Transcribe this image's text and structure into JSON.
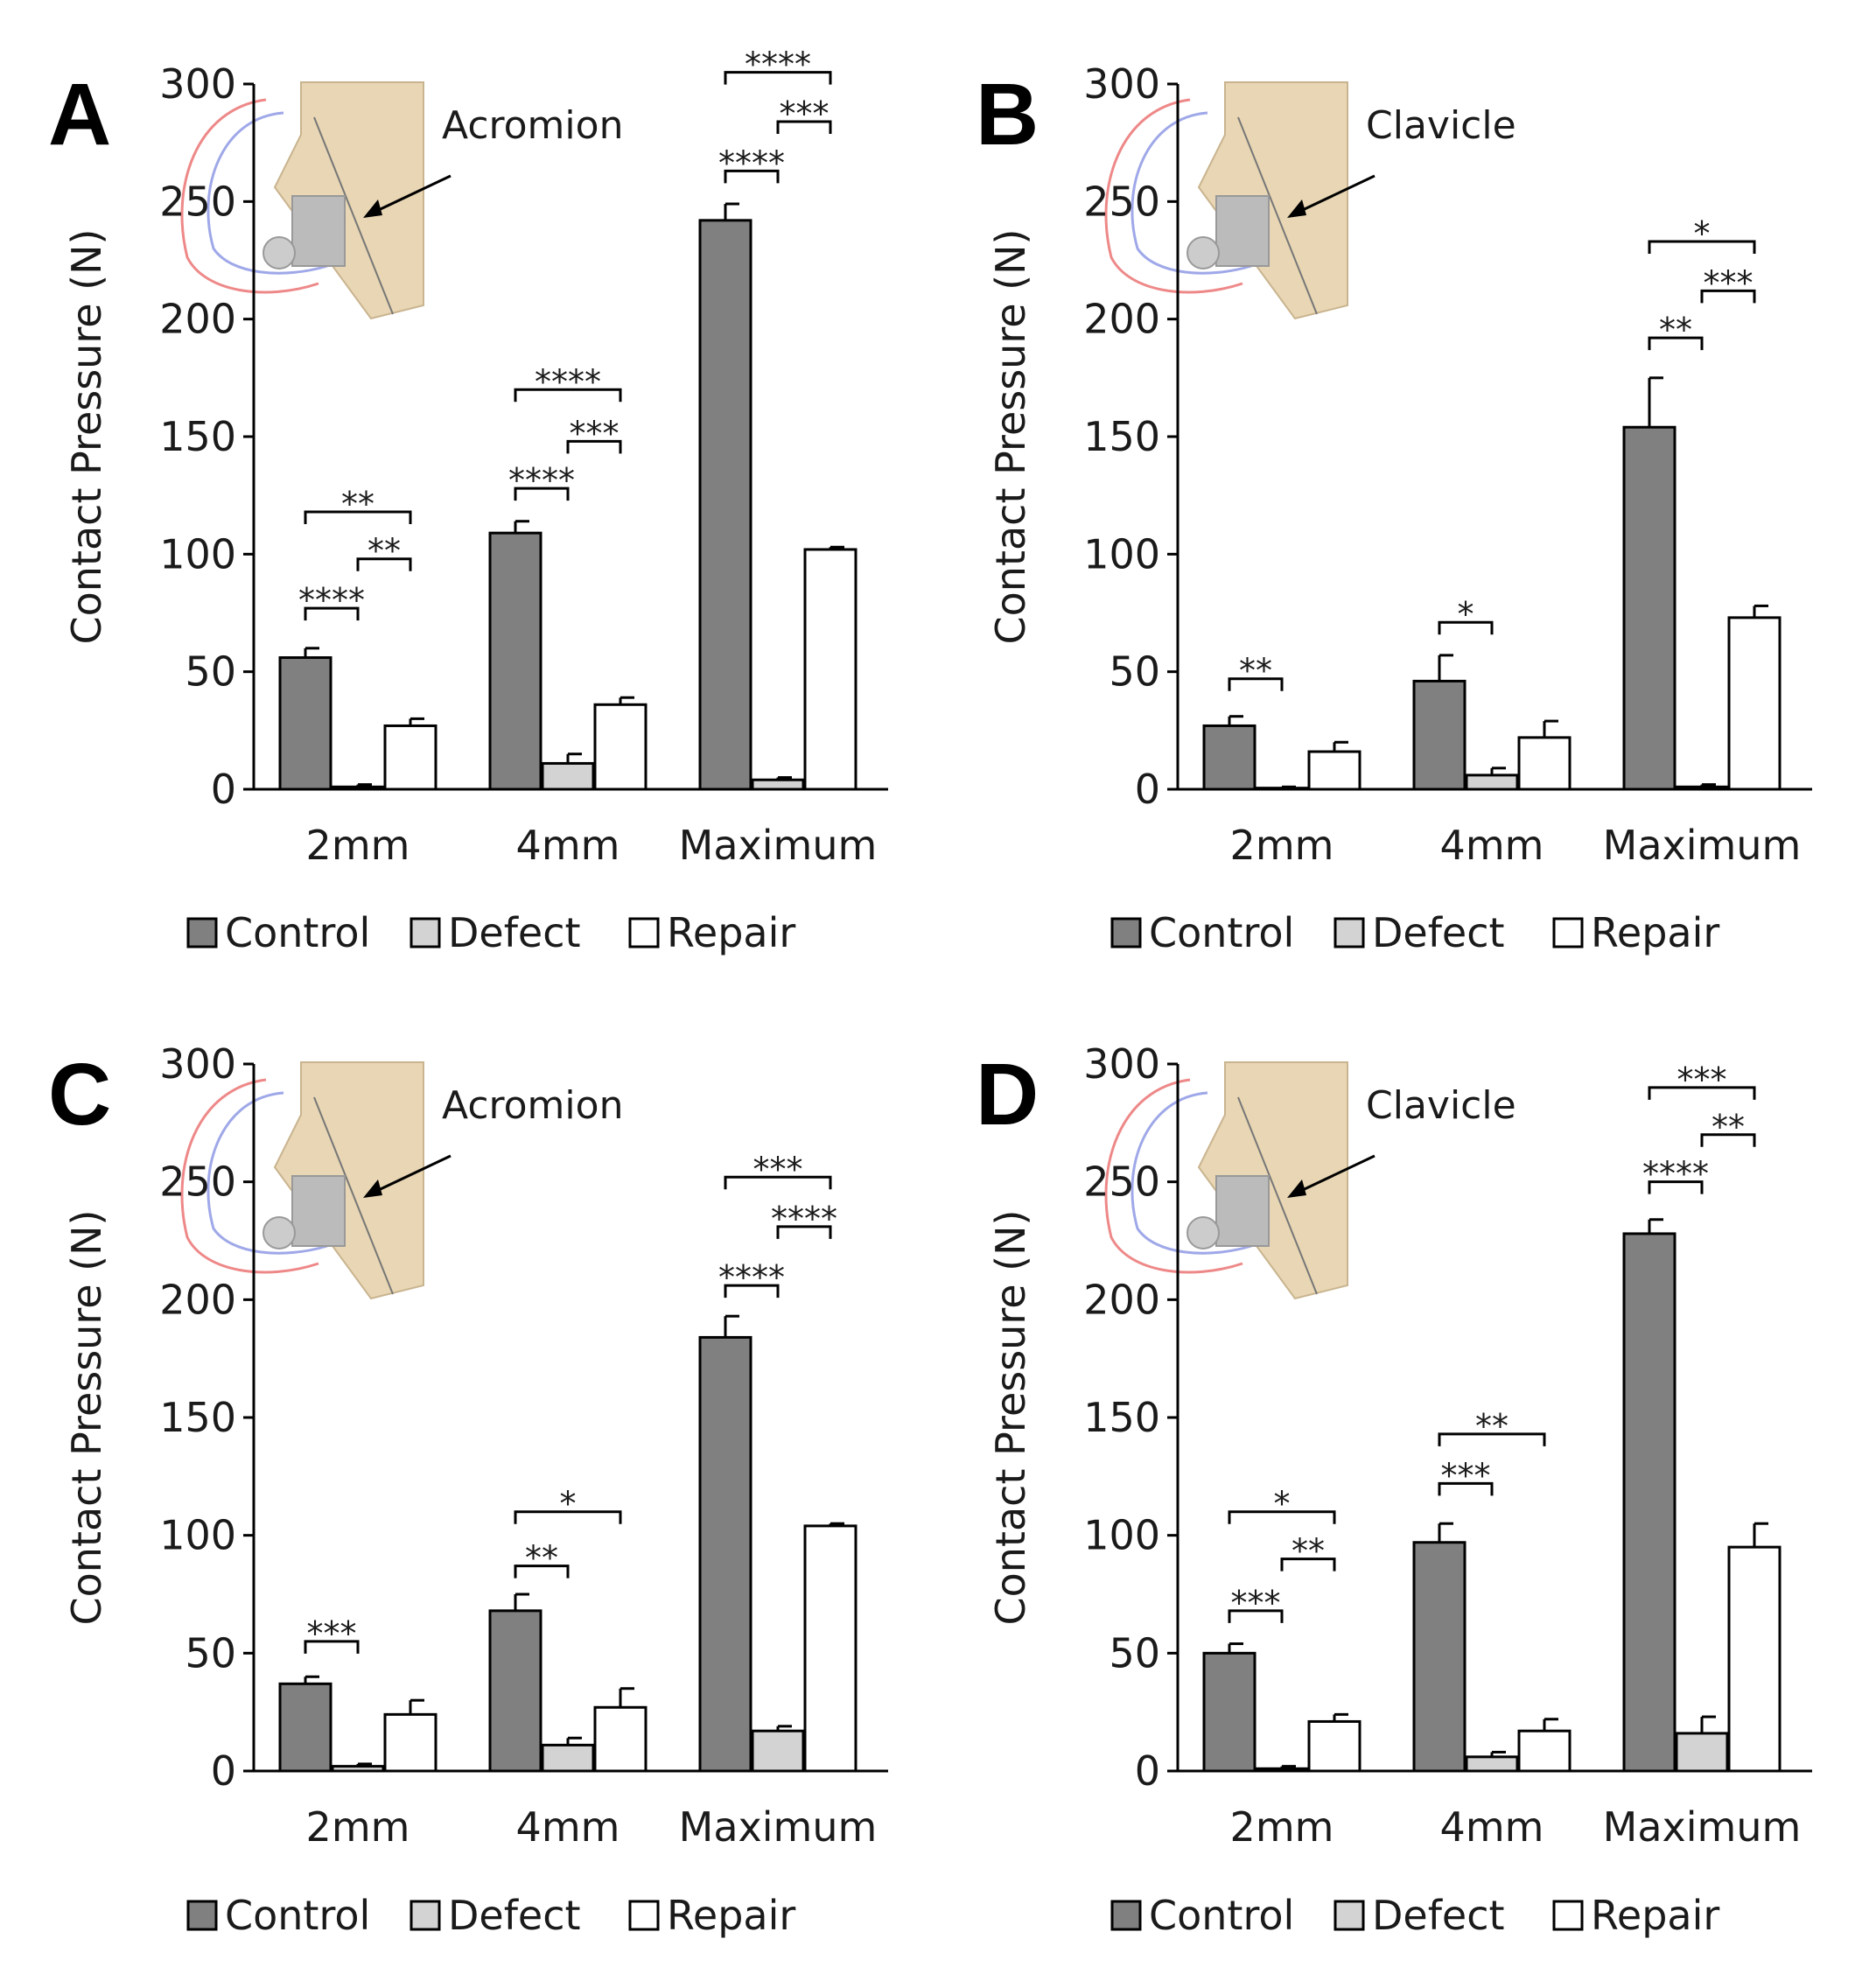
{
  "colors": {
    "control": "#808080",
    "defect": "#d3d3d3",
    "repair": "#ffffff",
    "outline": "#000000",
    "inset_bone": "#e8d6b4"
  },
  "chart_data": [
    {
      "panel": "A",
      "type": "bar",
      "inset_label": "Acromion",
      "ylabel": "Contact Pressure (N)",
      "ylim": [
        0,
        300
      ],
      "yticks": [
        0,
        50,
        100,
        150,
        200,
        250,
        300
      ],
      "categories": [
        "2mm",
        "4mm",
        "Maximum"
      ],
      "series": [
        {
          "name": "Control",
          "values": [
            56,
            109,
            242
          ],
          "errors": [
            4,
            5,
            7
          ]
        },
        {
          "name": "Defect",
          "values": [
            1,
            11,
            4
          ],
          "errors": [
            1,
            4,
            1
          ]
        },
        {
          "name": "Repair",
          "values": [
            27,
            36,
            102
          ],
          "errors": [
            3,
            3,
            1
          ]
        }
      ],
      "significance": [
        {
          "cat": 0,
          "from": 0,
          "to": 1,
          "y": 77,
          "label": "****"
        },
        {
          "cat": 0,
          "from": 1,
          "to": 2,
          "y": 98,
          "label": "**"
        },
        {
          "cat": 0,
          "from": 0,
          "to": 2,
          "y": 118,
          "label": "**"
        },
        {
          "cat": 1,
          "from": 0,
          "to": 1,
          "y": 128,
          "label": "****"
        },
        {
          "cat": 1,
          "from": 1,
          "to": 2,
          "y": 148,
          "label": "***"
        },
        {
          "cat": 1,
          "from": 0,
          "to": 2,
          "y": 170,
          "label": "****"
        },
        {
          "cat": 2,
          "from": 0,
          "to": 1,
          "y": 263,
          "label": "****"
        },
        {
          "cat": 2,
          "from": 1,
          "to": 2,
          "y": 284,
          "label": "***"
        },
        {
          "cat": 2,
          "from": 0,
          "to": 2,
          "y": 305,
          "label": "****"
        }
      ]
    },
    {
      "panel": "B",
      "type": "bar",
      "inset_label": "Clavicle",
      "ylabel": "Contact Pressure (N)",
      "ylim": [
        0,
        300
      ],
      "yticks": [
        0,
        50,
        100,
        150,
        200,
        250,
        300
      ],
      "categories": [
        "2mm",
        "4mm",
        "Maximum"
      ],
      "series": [
        {
          "name": "Control",
          "values": [
            27,
            46,
            154
          ],
          "errors": [
            4,
            11,
            21
          ]
        },
        {
          "name": "Defect",
          "values": [
            0.5,
            6,
            1
          ],
          "errors": [
            0.5,
            3,
            1
          ]
        },
        {
          "name": "Repair",
          "values": [
            16,
            22,
            73
          ],
          "errors": [
            4,
            7,
            5
          ]
        }
      ],
      "significance": [
        {
          "cat": 0,
          "from": 0,
          "to": 1,
          "y": 47,
          "label": "**"
        },
        {
          "cat": 1,
          "from": 0,
          "to": 1,
          "y": 71,
          "label": "*"
        },
        {
          "cat": 2,
          "from": 0,
          "to": 1,
          "y": 192,
          "label": "**"
        },
        {
          "cat": 2,
          "from": 1,
          "to": 2,
          "y": 212,
          "label": "***"
        },
        {
          "cat": 2,
          "from": 0,
          "to": 2,
          "y": 233,
          "label": "*"
        }
      ]
    },
    {
      "panel": "C",
      "type": "bar",
      "inset_label": "Acromion",
      "ylabel": "Contact Pressure (N)",
      "ylim": [
        0,
        300
      ],
      "yticks": [
        0,
        50,
        100,
        150,
        200,
        250,
        300
      ],
      "categories": [
        "2mm",
        "4mm",
        "Maximum"
      ],
      "series": [
        {
          "name": "Control",
          "values": [
            37,
            68,
            184
          ],
          "errors": [
            3,
            7,
            9
          ]
        },
        {
          "name": "Defect",
          "values": [
            2,
            11,
            17
          ],
          "errors": [
            1,
            3,
            2
          ]
        },
        {
          "name": "Repair",
          "values": [
            24,
            27,
            104
          ],
          "errors": [
            6,
            8,
            1
          ]
        }
      ],
      "significance": [
        {
          "cat": 0,
          "from": 0,
          "to": 1,
          "y": 55,
          "label": "***"
        },
        {
          "cat": 1,
          "from": 0,
          "to": 1,
          "y": 87,
          "label": "**"
        },
        {
          "cat": 1,
          "from": 0,
          "to": 2,
          "y": 110,
          "label": "*"
        },
        {
          "cat": 2,
          "from": 0,
          "to": 1,
          "y": 206,
          "label": "****"
        },
        {
          "cat": 2,
          "from": 1,
          "to": 2,
          "y": 231,
          "label": "****"
        },
        {
          "cat": 2,
          "from": 0,
          "to": 2,
          "y": 252,
          "label": "***"
        }
      ]
    },
    {
      "panel": "D",
      "type": "bar",
      "inset_label": "Clavicle",
      "ylabel": "Contact Pressure (N)",
      "ylim": [
        0,
        300
      ],
      "yticks": [
        0,
        50,
        100,
        150,
        200,
        250,
        300
      ],
      "categories": [
        "2mm",
        "4mm",
        "Maximum"
      ],
      "series": [
        {
          "name": "Control",
          "values": [
            50,
            97,
            228
          ],
          "errors": [
            4,
            8,
            6
          ]
        },
        {
          "name": "Defect",
          "values": [
            1,
            6,
            16
          ],
          "errors": [
            1,
            2,
            7
          ]
        },
        {
          "name": "Repair",
          "values": [
            21,
            17,
            95
          ],
          "errors": [
            3,
            5,
            10
          ]
        }
      ],
      "significance": [
        {
          "cat": 0,
          "from": 0,
          "to": 1,
          "y": 68,
          "label": "***"
        },
        {
          "cat": 0,
          "from": 1,
          "to": 2,
          "y": 90,
          "label": "**"
        },
        {
          "cat": 0,
          "from": 0,
          "to": 2,
          "y": 110,
          "label": "*"
        },
        {
          "cat": 1,
          "from": 0,
          "to": 1,
          "y": 122,
          "label": "***"
        },
        {
          "cat": 1,
          "from": 0,
          "to": 2,
          "y": 143,
          "label": "**"
        },
        {
          "cat": 2,
          "from": 0,
          "to": 1,
          "y": 250,
          "label": "****"
        },
        {
          "cat": 2,
          "from": 1,
          "to": 2,
          "y": 270,
          "label": "**"
        },
        {
          "cat": 2,
          "from": 0,
          "to": 2,
          "y": 290,
          "label": "***"
        }
      ]
    }
  ]
}
